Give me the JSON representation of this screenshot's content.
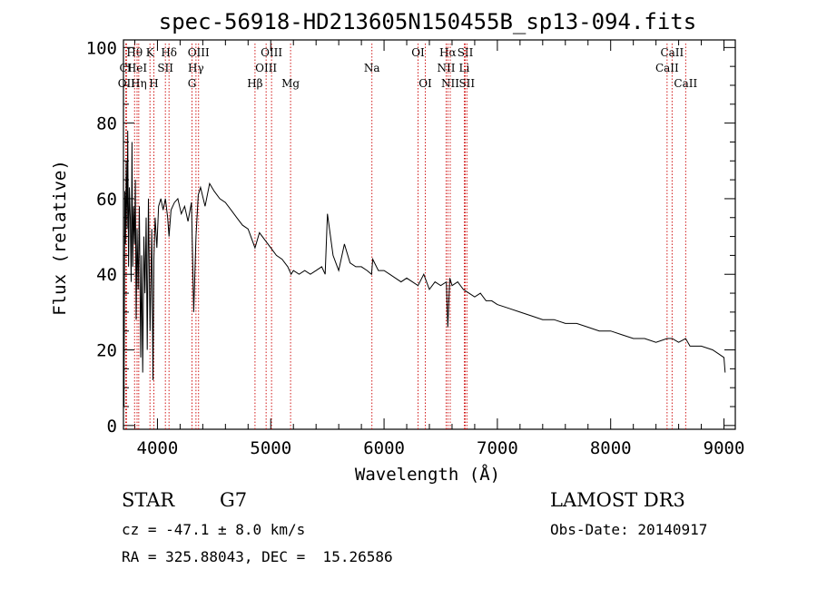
{
  "chart_data": {
    "type": "line",
    "title": "spec-56918-HD213605N150455B_sp13-094.fits",
    "xlabel": "Wavelength (Å)",
    "ylabel": "Flux (relative)",
    "xlim": [
      3700,
      9100
    ],
    "ylim": [
      -1,
      102
    ],
    "xticks": [
      4000,
      5000,
      6000,
      7000,
      8000,
      9000
    ],
    "yticks": [
      0,
      20,
      40,
      60,
      80,
      100
    ],
    "series": [
      {
        "name": "flux",
        "x": [
          3700,
          3705,
          3712,
          3718,
          3725,
          3732,
          3738,
          3745,
          3752,
          3760,
          3768,
          3775,
          3782,
          3790,
          3798,
          3805,
          3812,
          3820,
          3830,
          3840,
          3852,
          3860,
          3870,
          3880,
          3890,
          3900,
          3910,
          3920,
          3935,
          3950,
          3960,
          3968,
          3980,
          3995,
          4010,
          4030,
          4050,
          4070,
          4090,
          4102,
          4120,
          4150,
          4180,
          4210,
          4240,
          4270,
          4300,
          4320,
          4340,
          4360,
          4380,
          4420,
          4460,
          4500,
          4550,
          4600,
          4650,
          4700,
          4750,
          4800,
          4861,
          4900,
          4950,
          5000,
          5050,
          5100,
          5150,
          5180,
          5200,
          5250,
          5300,
          5350,
          5400,
          5450,
          5480,
          5500,
          5550,
          5600,
          5650,
          5700,
          5750,
          5800,
          5850,
          5890,
          5900,
          5950,
          6000,
          6050,
          6100,
          6150,
          6200,
          6250,
          6300,
          6350,
          6400,
          6450,
          6500,
          6550,
          6563,
          6580,
          6600,
          6650,
          6700,
          6750,
          6800,
          6850,
          6900,
          6950,
          7000,
          7100,
          7200,
          7300,
          7400,
          7500,
          7600,
          7700,
          7800,
          7900,
          8000,
          8100,
          8200,
          8300,
          8400,
          8498,
          8542,
          8600,
          8662,
          8700,
          8800,
          8900,
          8950,
          9000,
          9010
        ],
        "values": [
          30,
          5,
          62,
          48,
          70,
          52,
          78,
          42,
          63,
          55,
          38,
          75,
          42,
          58,
          48,
          65,
          28,
          52,
          36,
          58,
          18,
          45,
          14,
          50,
          35,
          55,
          20,
          60,
          25,
          52,
          12,
          44,
          55,
          47,
          58,
          60,
          57,
          60,
          55,
          50,
          57,
          59,
          60,
          56,
          58,
          54,
          59,
          30,
          50,
          61,
          63,
          58,
          64,
          62,
          60,
          59,
          57,
          55,
          53,
          52,
          47,
          51,
          49,
          47,
          45,
          44,
          42,
          40,
          41,
          40,
          41,
          40,
          41,
          42,
          40,
          56,
          45,
          41,
          48,
          43,
          42,
          42,
          41,
          40,
          44,
          41,
          41,
          40,
          39,
          38,
          39,
          38,
          37,
          40,
          36,
          38,
          37,
          38,
          26,
          39,
          37,
          38,
          36,
          35,
          34,
          35,
          33,
          33,
          32,
          31,
          30,
          29,
          28,
          28,
          27,
          27,
          26,
          25,
          25,
          24,
          23,
          23,
          22,
          23,
          23,
          22,
          23,
          21,
          21,
          20,
          19,
          18,
          14
        ]
      }
    ],
    "lines": [
      {
        "name": "Hθ",
        "wave": 3798,
        "row": 0
      },
      {
        "name": "CI",
        "wave": 3720,
        "row": 1
      },
      {
        "name": "OII",
        "wave": 3727,
        "row": 2
      },
      {
        "name": "HeI",
        "wave": 3820,
        "row": 1
      },
      {
        "name": "Hη",
        "wave": 3835,
        "row": 2
      },
      {
        "name": "K",
        "wave": 3934,
        "row": 0
      },
      {
        "name": "H",
        "wave": 3968,
        "row": 2
      },
      {
        "name": "SII",
        "wave": 4070,
        "row": 1
      },
      {
        "name": "Hδ",
        "wave": 4102,
        "row": 0
      },
      {
        "name": "OIII",
        "wave": 4363,
        "row": 0
      },
      {
        "name": "Hγ",
        "wave": 4340,
        "row": 1
      },
      {
        "name": "G",
        "wave": 4305,
        "row": 2
      },
      {
        "name": "Hβ",
        "wave": 4861,
        "row": 2
      },
      {
        "name": "OIII",
        "wave": 5007,
        "row": 0
      },
      {
        "name": "OIII",
        "wave": 4959,
        "row": 1
      },
      {
        "name": "Mg",
        "wave": 5175,
        "row": 2
      },
      {
        "name": "Na",
        "wave": 5893,
        "row": 1
      },
      {
        "name": "OI",
        "wave": 6300,
        "row": 0
      },
      {
        "name": "OI",
        "wave": 6364,
        "row": 2
      },
      {
        "name": "Hα",
        "wave": 6563,
        "row": 0
      },
      {
        "name": "NII",
        "wave": 6548,
        "row": 1
      },
      {
        "name": "NII",
        "wave": 6584,
        "row": 2
      },
      {
        "name": "SII",
        "wave": 6717,
        "row": 0
      },
      {
        "name": "Li",
        "wave": 6708,
        "row": 1
      },
      {
        "name": "SII",
        "wave": 6731,
        "row": 2
      },
      {
        "name": "CaII",
        "wave": 8542,
        "row": 0
      },
      {
        "name": "CaII",
        "wave": 8498,
        "row": 1
      },
      {
        "name": "CaII",
        "wave": 8662,
        "row": 2
      }
    ],
    "colors": {
      "spectrum": "#000000",
      "line_markers": "#cc0000"
    }
  },
  "info": {
    "class": "STAR",
    "subclass": "G7",
    "survey": "LAMOST DR3",
    "cz": "cz = -47.1 ± 8.0 km/s",
    "obs_date": "Obs-Date: 20140917",
    "coords": "RA = 325.88043, DEC =  15.26586"
  }
}
